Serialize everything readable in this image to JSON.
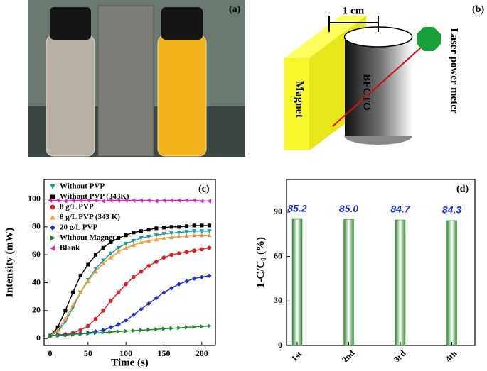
{
  "photo": {
    "label": "(a)"
  },
  "diagram": {
    "label": "(b)",
    "scale": "1 cm",
    "sample": "BFCTO",
    "magnet": "Magnet",
    "meter": "Laser power meter"
  },
  "chart_data": [
    {
      "type": "line",
      "label": "(c)",
      "x_label": "Time (s)",
      "y_label": "Intensity (mW)",
      "x": [
        0,
        10,
        20,
        30,
        40,
        50,
        60,
        70,
        80,
        90,
        100,
        110,
        120,
        130,
        140,
        150,
        160,
        170,
        180,
        190,
        200,
        210
      ],
      "xlim": [
        -8,
        218
      ],
      "ylim": [
        -5,
        114
      ],
      "xticks": [
        0,
        50,
        100,
        150,
        200
      ],
      "yticks": [
        0,
        20,
        40,
        60,
        80,
        100
      ],
      "legend": "upper left",
      "series": [
        {
          "name": "Without PVP",
          "color": "#1f9a9a",
          "marker": "triangle-down",
          "values": [
            2,
            5,
            12,
            22,
            33,
            42,
            50,
            56,
            61,
            65,
            68,
            70,
            72,
            73,
            74,
            75,
            75.5,
            76,
            76.5,
            77,
            77,
            77
          ]
        },
        {
          "name": "Without PVP (343K)",
          "color": "#000000",
          "marker": "square",
          "values": [
            2,
            8,
            20,
            33,
            45,
            53,
            60,
            65,
            69,
            72,
            74,
            76,
            77,
            78,
            79,
            79.5,
            80,
            80,
            80.5,
            81,
            81,
            81
          ]
        },
        {
          "name": "8 g/L PVP",
          "color": "#e02020",
          "marker": "circle",
          "values": [
            2,
            2.5,
            3,
            4,
            6,
            9,
            14,
            20,
            27,
            33,
            39,
            44,
            48,
            52,
            55,
            58,
            60,
            61,
            62,
            63,
            64,
            65
          ]
        },
        {
          "name": "8 g/L PVP (343 K)",
          "color": "#f59a30",
          "marker": "triangle-up",
          "values": [
            2,
            6,
            14,
            24,
            33,
            41,
            48,
            54,
            58,
            62,
            65,
            67,
            69,
            70,
            71,
            72,
            72.5,
            73,
            73.5,
            74,
            74,
            74
          ]
        },
        {
          "name": "20 g/L PVP",
          "color": "#1a2ed8",
          "marker": "diamond",
          "values": [
            2,
            2.2,
            2.5,
            3,
            3.5,
            4,
            5,
            6,
            8,
            10,
            13,
            17,
            21,
            25,
            29,
            33,
            36,
            39,
            41,
            43,
            44,
            45
          ]
        },
        {
          "name": "Without Magnet",
          "color": "#1c8a2a",
          "marker": "triangle-right",
          "values": [
            2,
            2.3,
            2.6,
            3,
            3.3,
            3.6,
            4,
            4.3,
            4.6,
            5,
            5.3,
            5.6,
            6,
            6.3,
            6.6,
            7,
            7.3,
            7.6,
            8,
            8.3,
            8.6,
            9
          ]
        },
        {
          "name": "Blank",
          "color": "#e020d0",
          "marker": "triangle-left",
          "values": [
            99,
            99,
            98.5,
            99,
            99,
            99,
            99,
            98.5,
            99,
            99,
            99,
            99,
            99,
            99,
            98.5,
            99,
            99,
            99,
            99,
            99,
            98.5,
            98.5
          ]
        }
      ]
    },
    {
      "type": "bar",
      "label": "(d)",
      "y_label": [
        "1-C/C",
        "0",
        " (%)"
      ],
      "categories": [
        "1st",
        "2nd",
        "3rd",
        "4th"
      ],
      "values": [
        85.2,
        85.0,
        84.7,
        84.3
      ],
      "value_labels": [
        "85.2",
        "85.0",
        "84.7",
        "84.3"
      ],
      "color": "#2e8b2e",
      "ylim": [
        0,
        112
      ],
      "yticks": [
        0,
        30,
        60,
        90
      ]
    }
  ]
}
